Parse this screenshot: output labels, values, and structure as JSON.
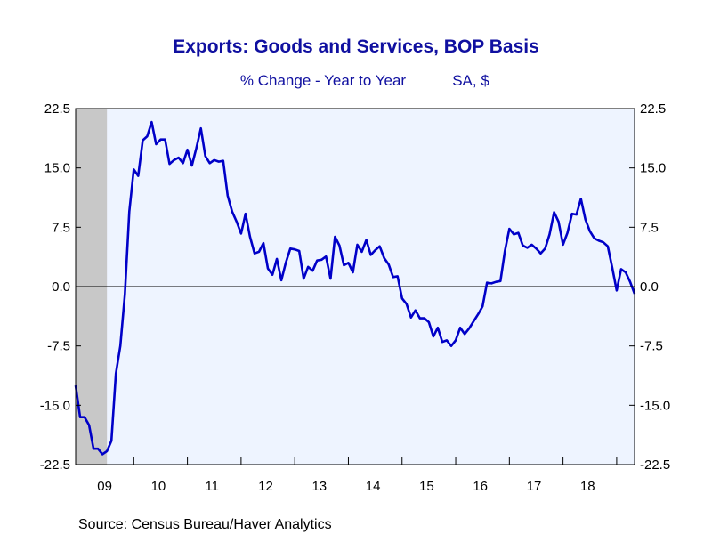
{
  "chart_data": {
    "type": "line",
    "title": "Exports: Goods and Services, BOP Basis",
    "subtitle_left": "% Change - Year to Year",
    "subtitle_right": "SA, $",
    "source": "Source:  Census Bureau/Haver Analytics",
    "x_tick_labels": [
      "09",
      "10",
      "11",
      "12",
      "13",
      "14",
      "15",
      "16",
      "17",
      "18"
    ],
    "y_tick_labels": [
      "22.5",
      "15.0",
      "7.5",
      "0.0",
      "-7.5",
      "-15.0",
      "-22.5"
    ],
    "y_ticks": [
      22.5,
      15.0,
      7.5,
      0.0,
      -7.5,
      -15.0,
      -22.5
    ],
    "ylim": [
      -22.5,
      22.5
    ],
    "x_start": "2008-12",
    "grid": false,
    "zero_line": true,
    "recession_shading": {
      "start": "2008-12",
      "end": "2009-06"
    },
    "series": [
      {
        "color": "#0000c8",
        "values": [
          -12.5,
          -16.5,
          -16.5,
          -17.5,
          -20.5,
          -20.5,
          -21.2,
          -20.8,
          -19.5,
          -11.0,
          -7.5,
          -1.0,
          9.5,
          14.8,
          14.0,
          18.5,
          19.0,
          20.8,
          18.0,
          18.6,
          18.6,
          15.5,
          16.0,
          16.3,
          15.6,
          17.3,
          15.3,
          17.5,
          20.0,
          16.5,
          15.6,
          16.0,
          15.8,
          15.9,
          11.5,
          9.5,
          8.2,
          6.7,
          9.2,
          6.3,
          4.2,
          4.4,
          5.5,
          2.3,
          1.5,
          3.5,
          0.8,
          3.0,
          4.8,
          4.7,
          4.5,
          1.0,
          2.5,
          2.0,
          3.3,
          3.4,
          3.8,
          1.0,
          6.3,
          5.2,
          2.7,
          3.0,
          1.8,
          5.3,
          4.4,
          5.9,
          4.0,
          4.6,
          5.1,
          3.6,
          2.8,
          1.2,
          1.3,
          -1.5,
          -2.2,
          -3.9,
          -3.0,
          -4.0,
          -4.0,
          -4.5,
          -6.3,
          -5.2,
          -7.0,
          -6.8,
          -7.5,
          -6.8,
          -5.2,
          -6.0,
          -5.3,
          -4.4,
          -3.5,
          -2.5,
          0.5,
          0.4,
          0.6,
          0.7,
          4.5,
          7.3,
          6.6,
          6.8,
          5.2,
          4.9,
          5.3,
          4.8,
          4.2,
          4.8,
          6.6,
          9.4,
          8.2,
          5.3,
          6.8,
          9.2,
          9.1,
          11.1,
          8.5,
          7.0,
          6.1,
          5.8,
          5.6,
          5.1,
          2.4,
          -0.5,
          2.2,
          1.8,
          0.6,
          -0.9
        ]
      }
    ]
  }
}
